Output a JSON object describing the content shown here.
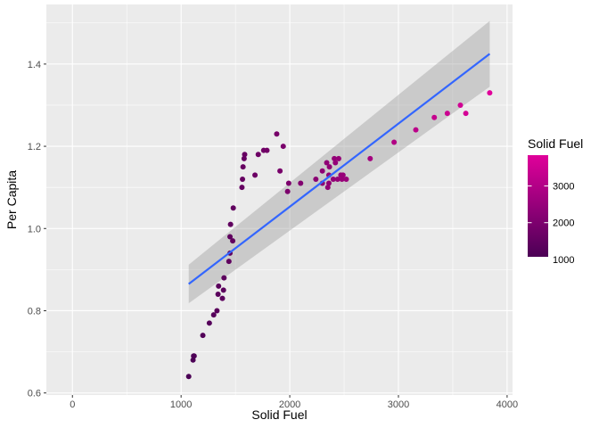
{
  "chart_data": {
    "type": "scatter",
    "xlabel": "Solid Fuel",
    "ylabel": "Per Capita",
    "xlim": [
      -240,
      4050
    ],
    "ylim": [
      0.595,
      1.545
    ],
    "x_ticks": [
      0,
      1000,
      2000,
      3000,
      4000
    ],
    "x_tick_labels": [
      "0",
      "1000",
      "2000",
      "3000",
      "4000"
    ],
    "y_ticks": [
      0.6,
      0.8,
      1.0,
      1.2,
      1.4
    ],
    "y_tick_labels": [
      "0.6",
      "0.8",
      "1.0",
      "1.2",
      "1.4"
    ],
    "grid": true,
    "legend": {
      "title": "Solid Fuel",
      "placement": "right",
      "type": "colorbar",
      "range": [
        1070,
        3840
      ],
      "ticks": [
        1000,
        2000,
        3000
      ],
      "tick_labels": [
        "1000",
        "2000",
        "3000"
      ],
      "color_low": "#4B0055",
      "color_high": "#E0009A"
    },
    "points": [
      {
        "x": 1070,
        "y": 0.64
      },
      {
        "x": 1110,
        "y": 0.68
      },
      {
        "x": 1115,
        "y": 0.69
      },
      {
        "x": 1120,
        "y": 0.69
      },
      {
        "x": 1200,
        "y": 0.74
      },
      {
        "x": 1260,
        "y": 0.77
      },
      {
        "x": 1300,
        "y": 0.79
      },
      {
        "x": 1330,
        "y": 0.8
      },
      {
        "x": 1340,
        "y": 0.84
      },
      {
        "x": 1345,
        "y": 0.86
      },
      {
        "x": 1380,
        "y": 0.83
      },
      {
        "x": 1390,
        "y": 0.85
      },
      {
        "x": 1395,
        "y": 0.88
      },
      {
        "x": 1440,
        "y": 0.92
      },
      {
        "x": 1450,
        "y": 0.94
      },
      {
        "x": 1450,
        "y": 0.98
      },
      {
        "x": 1455,
        "y": 1.01
      },
      {
        "x": 1475,
        "y": 0.97
      },
      {
        "x": 1480,
        "y": 1.05
      },
      {
        "x": 1560,
        "y": 1.1
      },
      {
        "x": 1565,
        "y": 1.12
      },
      {
        "x": 1570,
        "y": 1.15
      },
      {
        "x": 1580,
        "y": 1.17
      },
      {
        "x": 1585,
        "y": 1.18
      },
      {
        "x": 1680,
        "y": 1.13
      },
      {
        "x": 1710,
        "y": 1.18
      },
      {
        "x": 1760,
        "y": 1.19
      },
      {
        "x": 1790,
        "y": 1.19
      },
      {
        "x": 1880,
        "y": 1.23
      },
      {
        "x": 1910,
        "y": 1.14
      },
      {
        "x": 1940,
        "y": 1.2
      },
      {
        "x": 1980,
        "y": 1.09
      },
      {
        "x": 1990,
        "y": 1.11
      },
      {
        "x": 2100,
        "y": 1.11
      },
      {
        "x": 2240,
        "y": 1.12
      },
      {
        "x": 2300,
        "y": 1.11
      },
      {
        "x": 2300,
        "y": 1.14
      },
      {
        "x": 2340,
        "y": 1.16
      },
      {
        "x": 2350,
        "y": 1.1
      },
      {
        "x": 2360,
        "y": 1.11
      },
      {
        "x": 2360,
        "y": 1.13
      },
      {
        "x": 2365,
        "y": 1.15
      },
      {
        "x": 2400,
        "y": 1.12
      },
      {
        "x": 2410,
        "y": 1.17
      },
      {
        "x": 2420,
        "y": 1.16
      },
      {
        "x": 2440,
        "y": 1.12
      },
      {
        "x": 2450,
        "y": 1.17
      },
      {
        "x": 2470,
        "y": 1.13
      },
      {
        "x": 2480,
        "y": 1.12
      },
      {
        "x": 2490,
        "y": 1.13
      },
      {
        "x": 2520,
        "y": 1.12
      },
      {
        "x": 2740,
        "y": 1.17
      },
      {
        "x": 2960,
        "y": 1.21
      },
      {
        "x": 3160,
        "y": 1.24
      },
      {
        "x": 3330,
        "y": 1.27
      },
      {
        "x": 3450,
        "y": 1.28
      },
      {
        "x": 3570,
        "y": 1.3
      },
      {
        "x": 3620,
        "y": 1.28
      },
      {
        "x": 3840,
        "y": 1.33
      }
    ],
    "fit_line": {
      "method": "linear",
      "color": "#3366FF",
      "x": [
        1070,
        3840
      ],
      "y": [
        0.865,
        1.425
      ],
      "ci_lower": [
        0.818,
        1.345
      ],
      "ci_upper": [
        0.912,
        1.505
      ]
    }
  }
}
